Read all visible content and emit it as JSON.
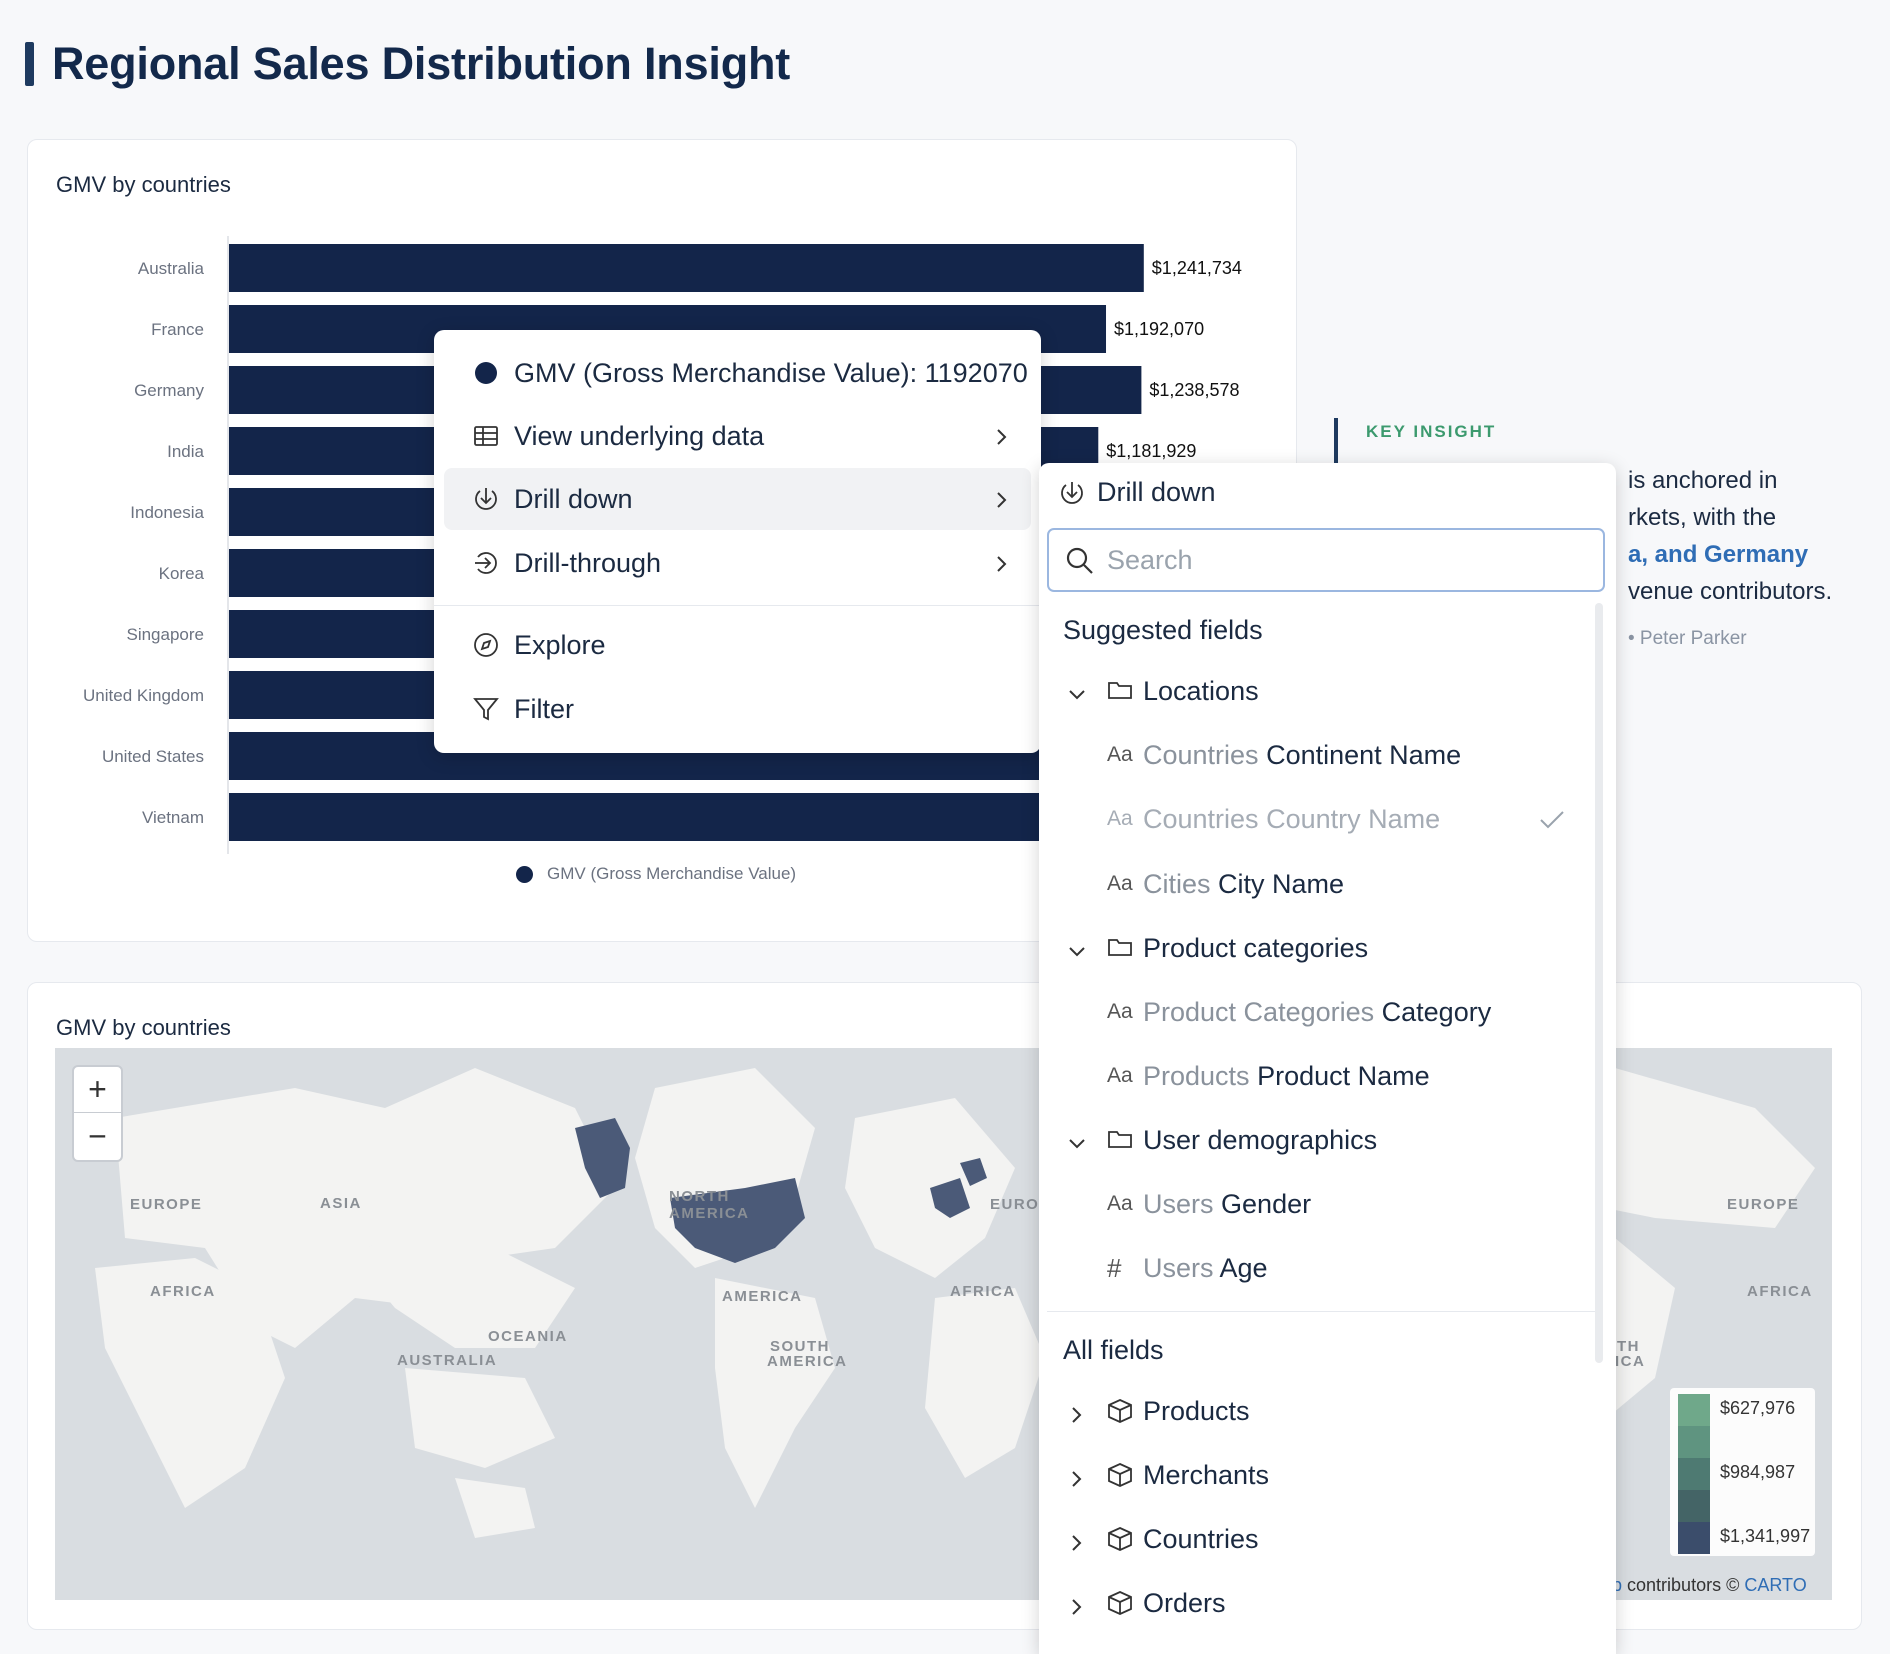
{
  "page": {
    "title": "Regional Sales Distribution Insight"
  },
  "bar_card": {
    "title": "GMV by countries",
    "legend_label": "GMV (Gross Merchandise Value)"
  },
  "chart_data": {
    "type": "bar",
    "orientation": "horizontal",
    "title": "GMV by countries",
    "categories": [
      "Australia",
      "France",
      "Germany",
      "India",
      "Indonesia",
      "Korea",
      "Singapore",
      "United Kingdom",
      "United States",
      "Vietnam"
    ],
    "series": [
      {
        "name": "GMV (Gross Merchandise Value)",
        "values": [
          1241734,
          1192070,
          1238578,
          1181929,
          null,
          null,
          null,
          null,
          null,
          null
        ]
      }
    ],
    "value_labels": [
      "$1,241,734",
      "$1,192,070",
      "$1,238,578",
      "$1,181,929",
      "",
      "",
      "",
      "",
      "",
      ""
    ],
    "legend_position": "bottom",
    "color": "#13254a"
  },
  "insight": {
    "label": "KEY INSIGHT",
    "line1": "is anchored in",
    "line2": "rkets, with the",
    "line3_highlight": "a, and Germany",
    "line4": "venue contributors.",
    "author": "• Peter Parker"
  },
  "map_card": {
    "title": "GMV by countries",
    "zoom_in": "+",
    "zoom_out": "−",
    "labels": [
      "EUROPE",
      "ASIA",
      "AFRICA",
      "OCEANIA",
      "AUSTRALIA",
      "NORTH",
      "AMERICA",
      "SOUTH",
      "AMERICA",
      "AMERICA",
      "AFRICA",
      "EUROPE",
      "EUROPE",
      "AFRICA",
      "TH",
      "ICA"
    ],
    "legend": [
      {
        "label": "$627,976",
        "color": "#6fa88a"
      },
      {
        "label": "$984,987",
        "color": "#4e7a72"
      },
      {
        "label": "$1,341,997",
        "color": "#3b4d6b"
      }
    ],
    "legend_swatches": [
      "#6fa88a",
      "#5f9480",
      "#4e7a72",
      "#446466",
      "#3b4d6b"
    ],
    "attribution_prefix": "p",
    "attribution_text": "contributors ©",
    "attribution_link": "CARTO"
  },
  "context_menu": {
    "header": "GMV (Gross Merchandise Value): 1192070",
    "items": [
      {
        "label": "View underlying data",
        "icon": "table-icon"
      },
      {
        "label": "Drill down",
        "icon": "drill-down-icon"
      },
      {
        "label": "Drill-through",
        "icon": "drill-through-icon"
      },
      {
        "label": "Explore",
        "icon": "compass-icon"
      },
      {
        "label": "Filter",
        "icon": "filter-icon"
      }
    ]
  },
  "drill_panel": {
    "title": "Drill down",
    "search_placeholder": "Search",
    "suggested_title": "Suggested fields",
    "groups": [
      {
        "label": "Locations",
        "fields": [
          {
            "table": "Countries",
            "name": "Continent Name",
            "type": "Aa"
          },
          {
            "table": "Countries",
            "name": "Country Name",
            "type": "Aa",
            "selected": true
          },
          {
            "table": "Cities",
            "name": "City Name",
            "type": "Aa"
          }
        ]
      },
      {
        "label": "Product categories",
        "fields": [
          {
            "table": "Product Categories",
            "name": "Category",
            "type": "Aa"
          },
          {
            "table": "Products",
            "name": "Product Name",
            "type": "Aa"
          }
        ]
      },
      {
        "label": "User demographics",
        "fields": [
          {
            "table": "Users",
            "name": "Gender",
            "type": "Aa"
          },
          {
            "table": "Users",
            "name": "Age",
            "type": "#"
          }
        ]
      }
    ],
    "all_fields_title": "All fields",
    "models": [
      "Products",
      "Merchants",
      "Countries",
      "Orders"
    ]
  }
}
